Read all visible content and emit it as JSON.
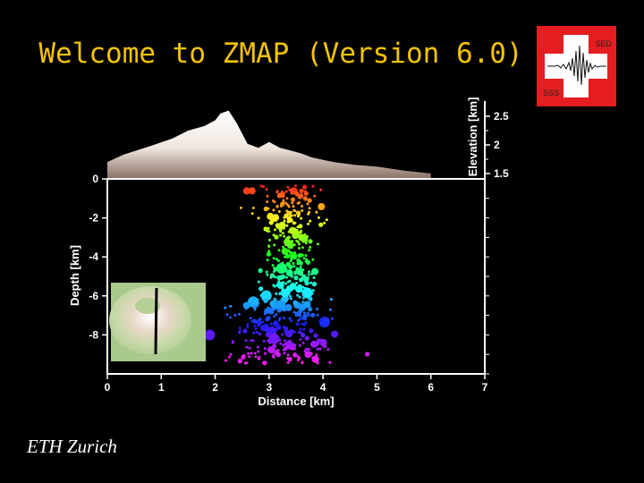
{
  "title": "Welcome to ZMAP (Version 6.0)",
  "logo": {
    "label_top": "SED",
    "label_bottom": "SSS"
  },
  "footer": "ETH Zurich",
  "chart_data": {
    "type": "scatter",
    "xlabel": "Distance [km]",
    "ylabel": "Depth [km]",
    "elevation_label": "Elevation [km]",
    "xlim": [
      0,
      7
    ],
    "ylim": [
      -10,
      0
    ],
    "x_ticks": [
      "0",
      "1",
      "2",
      "3",
      "4",
      "5",
      "6",
      "7"
    ],
    "depth_ticks": [
      "0",
      "-2",
      "-4",
      "-6",
      "-8"
    ],
    "elevation_ticks": [
      "2.5",
      "2",
      "1.5"
    ],
    "elevation_profile": {
      "x": [
        0,
        0.3,
        0.8,
        1.2,
        1.5,
        1.8,
        2.0,
        2.1,
        2.25,
        2.4,
        2.6,
        2.8,
        3.0,
        3.2,
        3.4,
        3.6,
        3.8,
        4.2,
        4.6,
        5.0,
        5.5,
        6.0
      ],
      "elev": [
        1.7,
        1.83,
        1.98,
        2.11,
        2.25,
        2.33,
        2.43,
        2.55,
        2.6,
        2.38,
        2.02,
        1.95,
        2.05,
        1.95,
        1.9,
        1.85,
        1.78,
        1.7,
        1.65,
        1.62,
        1.55,
        1.5
      ]
    },
    "colors": {
      "background": "#000000",
      "axes": "#ffffff",
      "title": "#f5c400",
      "terrain": "#f0ebe6"
    }
  }
}
